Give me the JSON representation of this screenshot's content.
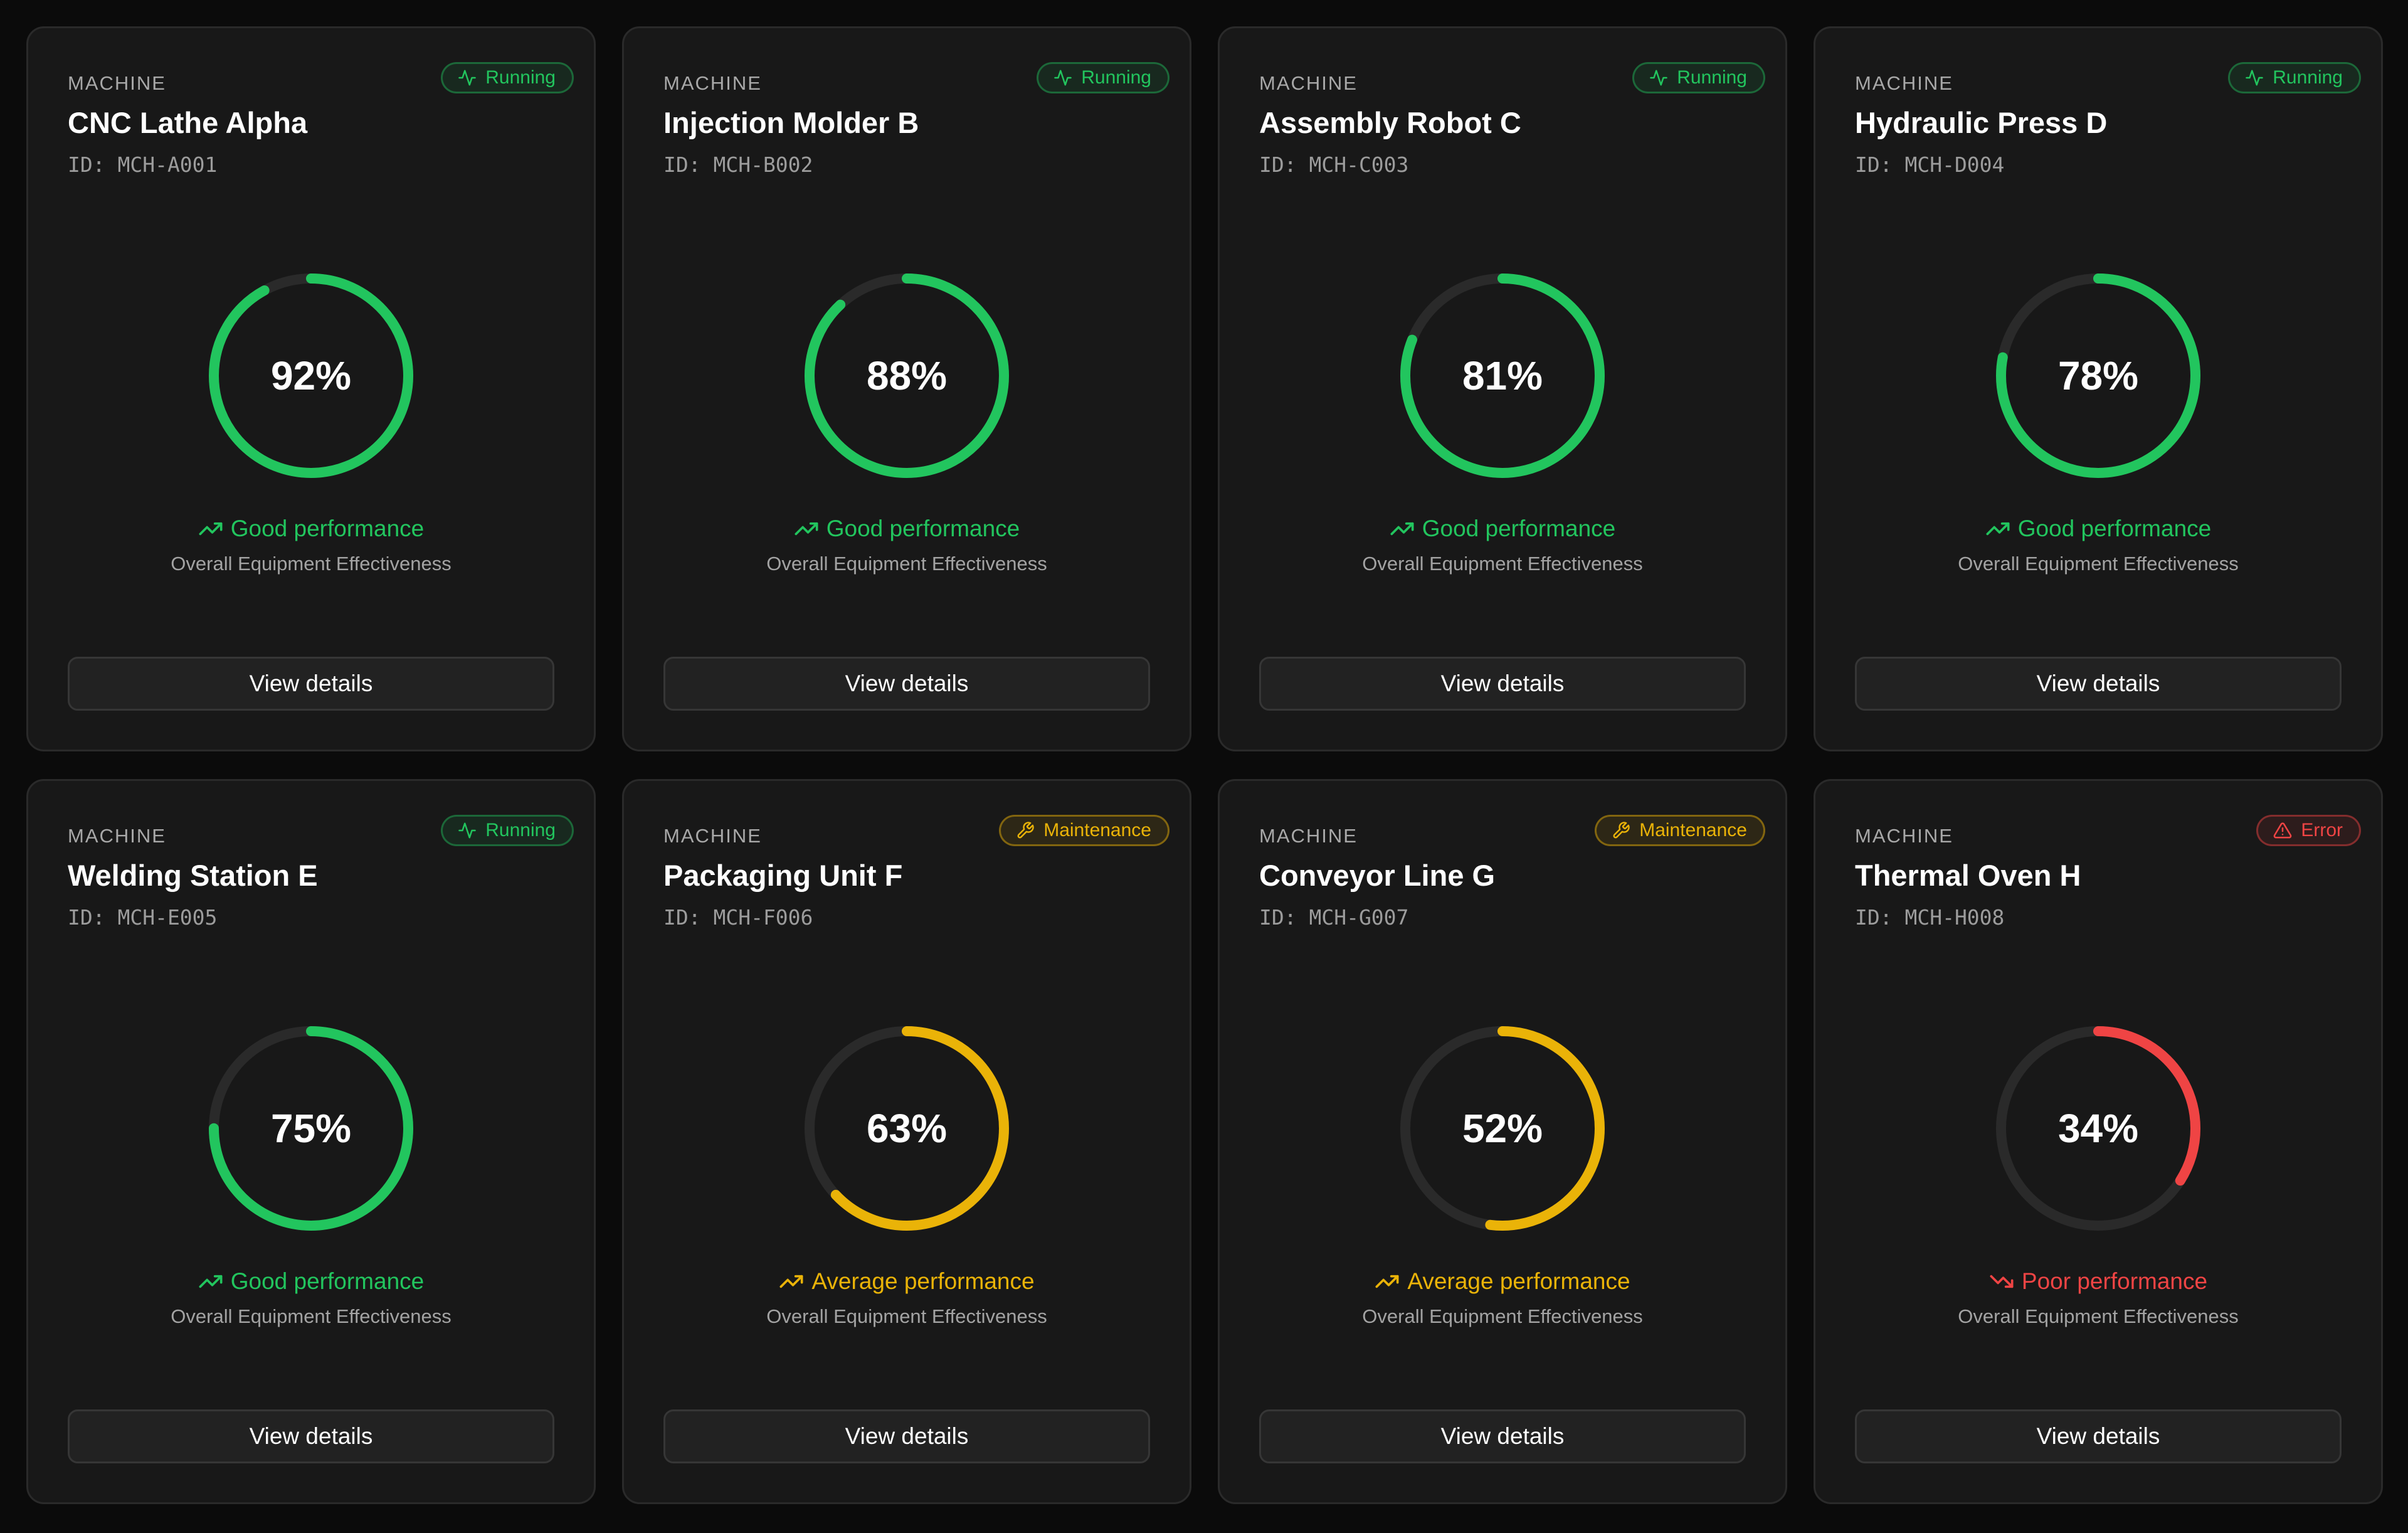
{
  "colors": {
    "good": "#22c55e",
    "average": "#eab308",
    "poor": "#ef4444",
    "track": "#2a2a2a"
  },
  "machines": [
    {
      "kicker": "MACHINE",
      "name": "CNC Lathe Alpha",
      "id": "ID: MCH-A001",
      "status": "running",
      "status_label": "Running",
      "status_icon": "activity-icon",
      "oee_percent": 92,
      "oee_text": "92%",
      "performance": "good",
      "performance_label": "Good performance",
      "performance_icon": "trending-up-icon",
      "oee_label": "Overall Equipment Effectiveness",
      "button_label": "View details"
    },
    {
      "kicker": "MACHINE",
      "name": "Injection Molder B",
      "id": "ID: MCH-B002",
      "status": "running",
      "status_label": "Running",
      "status_icon": "activity-icon",
      "oee_percent": 88,
      "oee_text": "88%",
      "performance": "good",
      "performance_label": "Good performance",
      "performance_icon": "trending-up-icon",
      "oee_label": "Overall Equipment Effectiveness",
      "button_label": "View details"
    },
    {
      "kicker": "MACHINE",
      "name": "Assembly Robot C",
      "id": "ID: MCH-C003",
      "status": "running",
      "status_label": "Running",
      "status_icon": "activity-icon",
      "oee_percent": 81,
      "oee_text": "81%",
      "performance": "good",
      "performance_label": "Good performance",
      "performance_icon": "trending-up-icon",
      "oee_label": "Overall Equipment Effectiveness",
      "button_label": "View details"
    },
    {
      "kicker": "MACHINE",
      "name": "Hydraulic Press D",
      "id": "ID: MCH-D004",
      "status": "running",
      "status_label": "Running",
      "status_icon": "activity-icon",
      "oee_percent": 78,
      "oee_text": "78%",
      "performance": "good",
      "performance_label": "Good performance",
      "performance_icon": "trending-up-icon",
      "oee_label": "Overall Equipment Effectiveness",
      "button_label": "View details"
    },
    {
      "kicker": "MACHINE",
      "name": "Welding Station E",
      "id": "ID: MCH-E005",
      "status": "running",
      "status_label": "Running",
      "status_icon": "activity-icon",
      "oee_percent": 75,
      "oee_text": "75%",
      "performance": "good",
      "performance_label": "Good performance",
      "performance_icon": "trending-up-icon",
      "oee_label": "Overall Equipment Effectiveness",
      "button_label": "View details"
    },
    {
      "kicker": "MACHINE",
      "name": "Packaging Unit F",
      "id": "ID: MCH-F006",
      "status": "maintenance",
      "status_label": "Maintenance",
      "status_icon": "wrench-icon",
      "oee_percent": 63,
      "oee_text": "63%",
      "performance": "average",
      "performance_label": "Average performance",
      "performance_icon": "trending-up-icon",
      "oee_label": "Overall Equipment Effectiveness",
      "button_label": "View details"
    },
    {
      "kicker": "MACHINE",
      "name": "Conveyor Line G",
      "id": "ID: MCH-G007",
      "status": "maintenance",
      "status_label": "Maintenance",
      "status_icon": "wrench-icon",
      "oee_percent": 52,
      "oee_text": "52%",
      "performance": "average",
      "performance_label": "Average performance",
      "performance_icon": "trending-up-icon",
      "oee_label": "Overall Equipment Effectiveness",
      "button_label": "View details"
    },
    {
      "kicker": "MACHINE",
      "name": "Thermal Oven H",
      "id": "ID: MCH-H008",
      "status": "error",
      "status_label": "Error",
      "status_icon": "alert-triangle-icon",
      "oee_percent": 34,
      "oee_text": "34%",
      "performance": "poor",
      "performance_label": "Poor performance",
      "performance_icon": "trending-down-icon",
      "oee_label": "Overall Equipment Effectiveness",
      "button_label": "View details"
    }
  ]
}
